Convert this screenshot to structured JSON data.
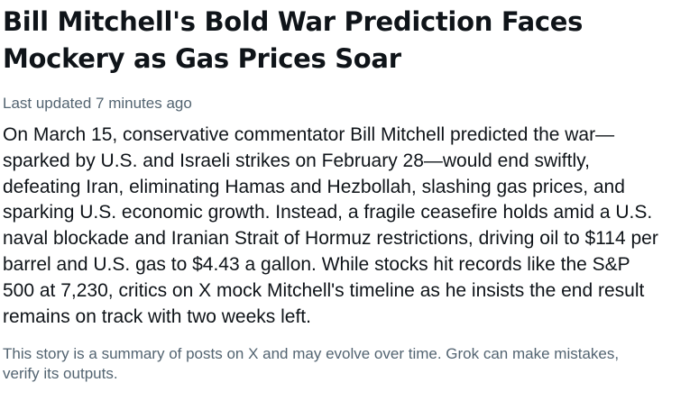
{
  "story": {
    "headline": "Bill Mitchell's Bold War Prediction Faces Mockery as Gas Prices Soar",
    "updated": "Last updated 7 minutes ago",
    "summary": "On March 15, conservative commentator Bill Mitchell predicted the war—sparked by U.S. and Israeli strikes on February 28—would end swiftly, defeating Iran, eliminating Hamas and Hezbollah, slashing gas prices, and sparking U.S. economic growth. Instead, a fragile ceasefire holds amid a U.S. naval blockade and Iranian Strait of Hormuz restrictions, driving oil to $114 per barrel and U.S. gas to $4.43 a gallon. While stocks hit records like the S&P 500 at 7,230, critics on X mock Mitchell's timeline as he insists the end result remains on track with two weeks left.",
    "disclaimer": "This story is a summary of posts on X and may evolve over time. Grok can make mistakes, verify its outputs."
  }
}
